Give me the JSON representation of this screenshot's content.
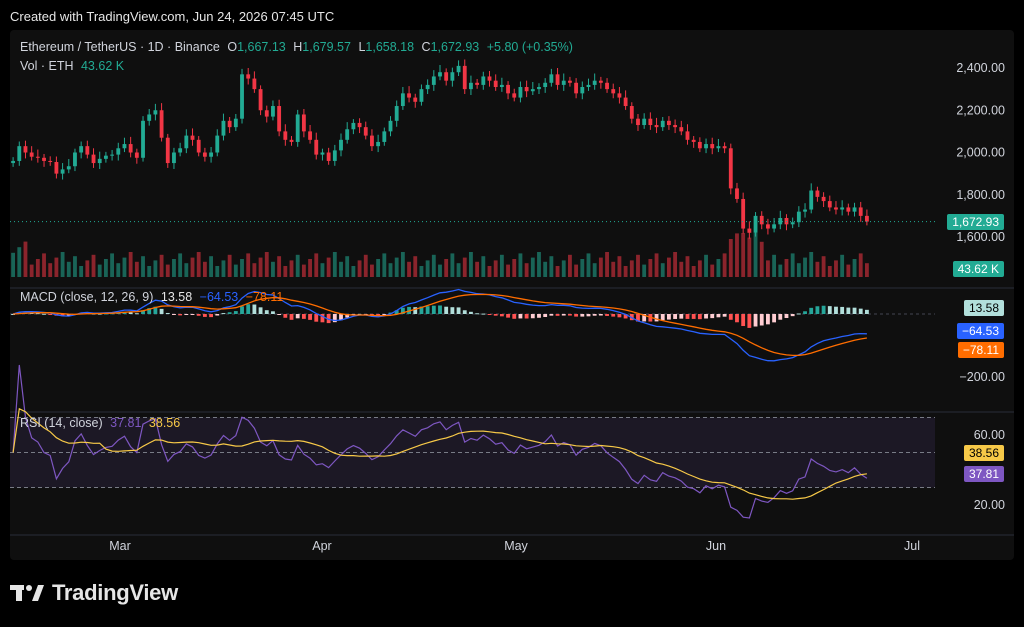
{
  "header": {
    "created_text": "Created with TradingView.com, Jun 24, 2026 07:45 UTC"
  },
  "legend": {
    "symbol": "Ethereum / TetherUS · 1D · Binance",
    "o_label": "O",
    "o_value": "1,667.13",
    "h_label": "H",
    "h_value": "1,679.57",
    "l_label": "L",
    "l_value": "1,658.18",
    "c_label": "C",
    "c_value": "1,672.93",
    "change": "+5.80 (+0.35%)",
    "vol_label": "Vol · ETH",
    "vol_value": "43.62 K"
  },
  "macd_legend": {
    "label": "MACD (close, 12, 26, 9)",
    "hist": "13.58",
    "macd": "−64.53",
    "signal": "−78.11"
  },
  "rsi_legend": {
    "label": "RSI (14, close)",
    "rsi": "37.81",
    "ma": "38.56"
  },
  "badges": {
    "price": "1,672.93",
    "volume": "43.62 K",
    "hist": "13.58",
    "macd": "−64.53",
    "signal": "−78.11",
    "rsi_ma": "38.56",
    "rsi": "37.81"
  },
  "footer": {
    "brand": "TradingView"
  },
  "colors": {
    "up": "#22ab94",
    "down": "#f23645",
    "macd_line": "#2962ff",
    "signal_line": "#ff6d00",
    "rsi_line": "#7e57c2",
    "rsi_ma": "#f7c948",
    "background": "#0f0f0f"
  },
  "chart_data": [
    {
      "type": "candlestick",
      "name": "price",
      "y_ticks": [
        "2,400.00",
        "2,200.00",
        "2,000.00",
        "1,800.00",
        "1,600.00"
      ],
      "y_tick_values": [
        2400,
        2200,
        2000,
        1800,
        1600
      ],
      "x_ticks": [
        "Mar",
        "Apr",
        "May",
        "Jun",
        "Jul"
      ],
      "closes": [
        1960,
        2030,
        2000,
        1980,
        1975,
        1960,
        1955,
        1900,
        1920,
        1935,
        2000,
        2030,
        1990,
        1950,
        1970,
        1985,
        1990,
        2020,
        2040,
        2000,
        1975,
        2150,
        2180,
        2200,
        2070,
        1950,
        2000,
        2020,
        2080,
        2060,
        2000,
        1980,
        2000,
        2080,
        2150,
        2120,
        2160,
        2370,
        2350,
        2300,
        2200,
        2170,
        2220,
        2100,
        2060,
        2050,
        2180,
        2100,
        2060,
        1990,
        2000,
        1960,
        2010,
        2060,
        2110,
        2140,
        2120,
        2080,
        2030,
        2050,
        2100,
        2150,
        2220,
        2280,
        2260,
        2240,
        2300,
        2320,
        2360,
        2380,
        2340,
        2380,
        2410,
        2300,
        2330,
        2320,
        2360,
        2340,
        2310,
        2320,
        2280,
        2260,
        2310,
        2290,
        2300,
        2310,
        2330,
        2370,
        2320,
        2340,
        2330,
        2280,
        2310,
        2320,
        2340,
        2330,
        2300,
        2280,
        2260,
        2220,
        2160,
        2130,
        2160,
        2130,
        2120,
        2150,
        2130,
        2120,
        2100,
        2060,
        2050,
        2020,
        2040,
        2020,
        2030,
        2020,
        1830,
        1780,
        1640,
        1620,
        1700,
        1660,
        1640,
        1660,
        1690,
        1660,
        1670,
        1720,
        1730,
        1820,
        1790,
        1770,
        1740,
        1730,
        1740,
        1720,
        1740,
        1700,
        1673
      ],
      "volume_last": "43.62 K"
    },
    {
      "type": "macd",
      "params": [
        12,
        26,
        9
      ],
      "y_ticks": [
        "−200.00"
      ],
      "y_tick_values": [
        -200
      ],
      "macd_last": -64.53,
      "signal_last": -78.11,
      "hist_last": 13.58
    },
    {
      "type": "rsi",
      "params": [
        14
      ],
      "y_ticks": [
        "60.00",
        "20.00"
      ],
      "y_tick_values": [
        60,
        20
      ],
      "levels": [
        70,
        50,
        30
      ],
      "rsi_last": 37.81,
      "ma_last": 38.56
    }
  ]
}
